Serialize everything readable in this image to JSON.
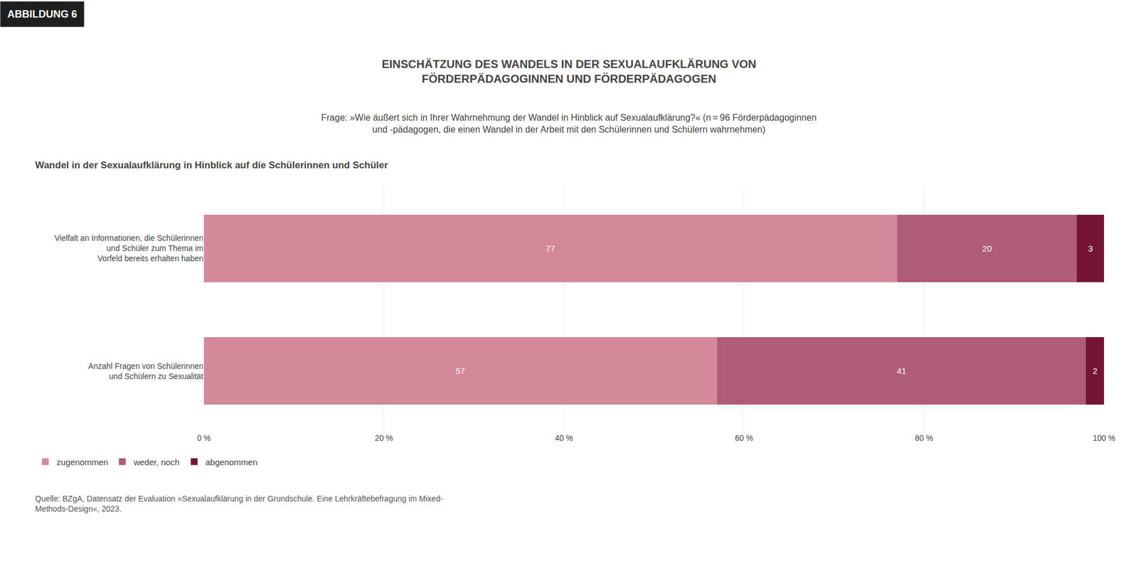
{
  "chart_data": {
    "type": "bar",
    "orientation": "horizontal",
    "stacked": true,
    "data_labels": true,
    "grid": true,
    "legend": "bottom",
    "header": "ABBILDUNG 6",
    "title": "EINSCHÄTZUNG DES WANDELS IN DER SEXUALAUFKLÄRUNG VON\nFÖRDERPÄDAGOGINNEN UND FÖRDERPÄDAGOGEN",
    "subtitle": "Frage: »Wie äußert sich in Ihrer Wahrnehmung der Wandel in Hinblick auf Sexualaufklärung?« (n = 96 Förderpädagoginnen\nund -pädagogen, die einen Wandel in der Arbeit mit den Schülerinnen und Schülern wahrnehmen)",
    "section_title": "Wandel in der Sexualaufklärung in Hinblick auf die Schülerinnen und Schüler",
    "source": "Quelle: BZgA, Datensatz der Evaluation »Sexualaufklärung in der Grundschule. Eine Lehrkräftebefragung im Mixed-\nMethods-Design«, 2023.",
    "categories": [
      "Vielfalt an Informationen, die Schülerinnen\nund Schüler zum Thema im\nVorfeld bereits erhalten haben",
      "Anzahl Fragen von Schülerinnen\nund Schülern zu Sexualität"
    ],
    "series": [
      {
        "name": "zugenommen",
        "color": "#d4899b",
        "values": [
          77,
          57
        ]
      },
      {
        "name": "weder, noch",
        "color": "#ae5c78",
        "values": [
          20,
          41
        ]
      },
      {
        "name": "abgenommen",
        "color": "#751535",
        "values": [
          3,
          2
        ]
      }
    ],
    "xlim": [
      0,
      100
    ],
    "xticks": [
      {
        "value": 0,
        "label": "0 %"
      },
      {
        "value": 20,
        "label": "20 %"
      },
      {
        "value": 40,
        "label": "40 %"
      },
      {
        "value": 60,
        "label": "60 %"
      },
      {
        "value": 80,
        "label": "80 %"
      },
      {
        "value": 100,
        "label": "100 %"
      }
    ]
  }
}
